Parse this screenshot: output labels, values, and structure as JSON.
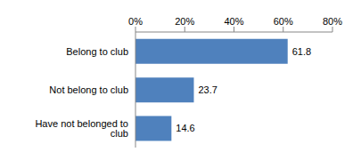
{
  "chart_data": {
    "type": "bar",
    "orientation": "horizontal",
    "categories": [
      "Belong to club",
      "Not belong to club",
      "Have not belonged to club"
    ],
    "values": [
      61.8,
      23.7,
      14.6
    ],
    "color": "#4f81bd",
    "xlim": [
      0,
      80
    ],
    "xticks": [
      {
        "value": 0,
        "label": "0%"
      },
      {
        "value": 20,
        "label": "20%"
      },
      {
        "value": 40,
        "label": "40%"
      },
      {
        "value": 60,
        "label": "60%"
      },
      {
        "value": 80,
        "label": "80%"
      }
    ],
    "grid": false,
    "data_labels": true
  }
}
